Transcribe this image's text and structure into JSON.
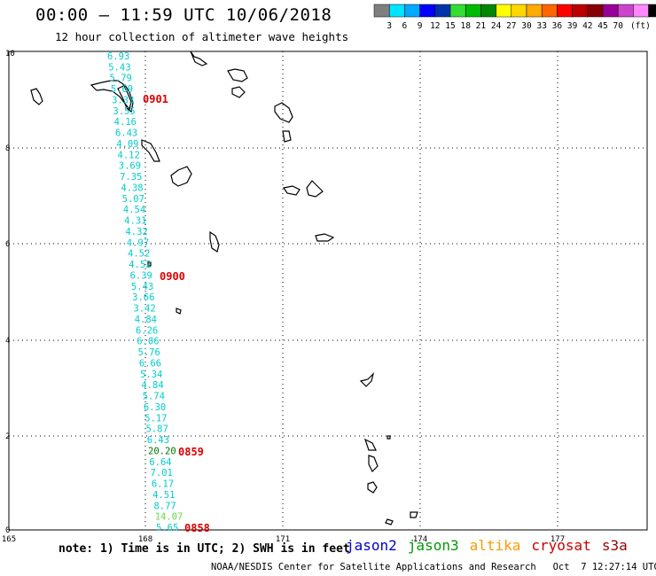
{
  "title": "00:00 – 11:59 UTC 10/06/2018",
  "subtitle": "12 hour collection of altimeter wave heights",
  "color_scale": {
    "colors": [
      "#7f7f7f",
      "#00e5ff",
      "#00aaff",
      "#0000ff",
      "#0033aa",
      "#33dd33",
      "#00bb00",
      "#008800",
      "#ffff00",
      "#ffd700",
      "#ffaa00",
      "#ff6600",
      "#ff0000",
      "#bb0000",
      "#880000",
      "#990099",
      "#cc44cc",
      "#ff88ff",
      "#000000"
    ],
    "labels": [
      "3",
      "6",
      "9",
      "12",
      "15",
      "18",
      "21",
      "24",
      "27",
      "30",
      "33",
      "36",
      "39",
      "42",
      "45",
      "70",
      "(ft)"
    ]
  },
  "axes": {
    "x_ticks": [
      "165",
      "168",
      "171",
      "174",
      "177"
    ],
    "y_ticks": [
      "0",
      "2",
      "4",
      "6",
      "8",
      "10"
    ]
  },
  "track_times": [
    "0901",
    "0900",
    "0859",
    "0858"
  ],
  "wave_heights": [
    "6.93",
    "5.43",
    "5.79",
    "5.69",
    "3.33",
    "3.55",
    "4.16",
    "6.43",
    "4.09",
    "4.12",
    "3.69",
    "7.35",
    "4.38",
    "5.07",
    "4.54",
    "4.31",
    "4.32",
    "4.97",
    "4.52",
    "4.52",
    "6.39",
    "5.43",
    "3.66",
    "3.42",
    "4.84",
    "6.26",
    "6.06",
    "5.76",
    "6.66",
    "5.34",
    "4.84",
    "5.74",
    "6.30",
    "5.17",
    "5.87",
    "6.43",
    "20.20",
    "6.64",
    "7.01",
    "6.17",
    "4.51",
    "8.77",
    "14.07",
    "5.65"
  ],
  "note": "note: 1) Time is in UTC; 2) SWH is in feet",
  "satellites": [
    {
      "name": "jason2",
      "color": "#0000cc"
    },
    {
      "name": "jason3",
      "color": "#009900"
    },
    {
      "name": "altika",
      "color": "#ff9900"
    },
    {
      "name": "cryosat",
      "color": "#cc0000"
    },
    {
      "name": "s3a",
      "color": "#990000"
    }
  ],
  "credit": "NOAA/NESDIS Center for Satellite Applications and Research   Oct  7 12:27:14 UTC 2018"
}
